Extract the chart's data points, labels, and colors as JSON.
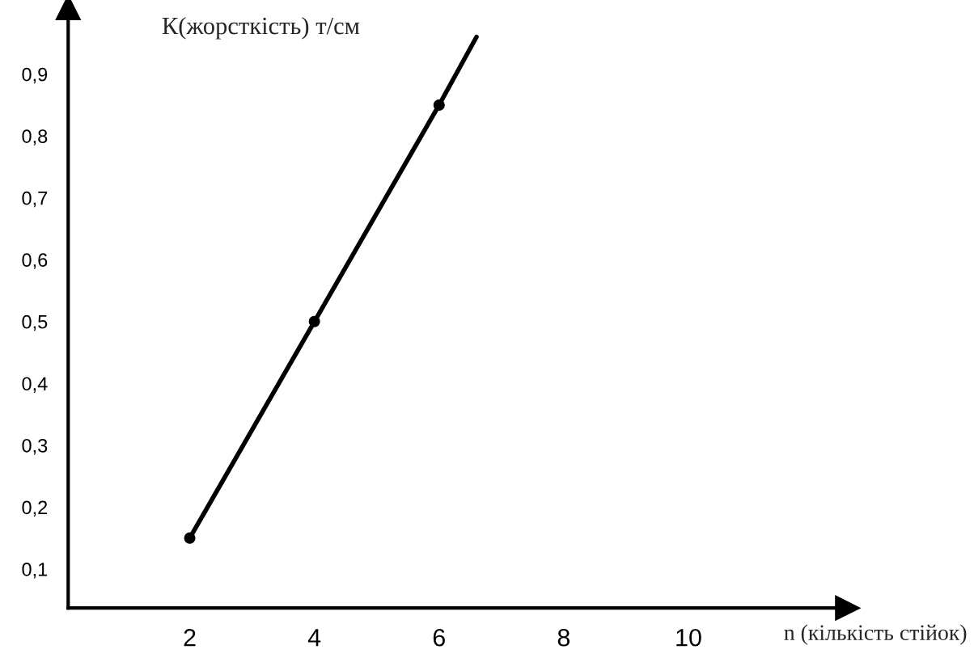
{
  "chart_data": {
    "type": "line",
    "xlabel": "n (кількість стійок)",
    "ylabel": "К(жорсткість) т/см",
    "xlim": [
      0.05,
      12.55
    ],
    "ylim": [
      0.037,
      1.007
    ],
    "xticks": [
      2,
      4,
      6,
      8,
      10
    ],
    "yticks": [
      {
        "value": 0.1,
        "label": "0,1"
      },
      {
        "value": 0.2,
        "label": "0,2"
      },
      {
        "value": 0.3,
        "label": "0,3"
      },
      {
        "value": 0.4,
        "label": "0,4"
      },
      {
        "value": 0.5,
        "label": "0,5"
      },
      {
        "value": 0.6,
        "label": "0,6"
      },
      {
        "value": 0.7,
        "label": "0,7"
      },
      {
        "value": 0.8,
        "label": "0,8"
      },
      {
        "value": 0.9,
        "label": "0,9"
      }
    ],
    "grid": false,
    "legend": false,
    "series": [
      {
        "color": "#000000",
        "x": [
          2,
          4,
          6,
          6.6
        ],
        "values": [
          0.15,
          0.5,
          0.85,
          0.96
        ],
        "marker": "none",
        "line_style": "solid"
      },
      {
        "type": "scatter",
        "color": "#000000",
        "x": [
          2,
          4,
          6
        ],
        "values": [
          0.15,
          0.5,
          0.85
        ],
        "marker": "circle"
      }
    ]
  }
}
